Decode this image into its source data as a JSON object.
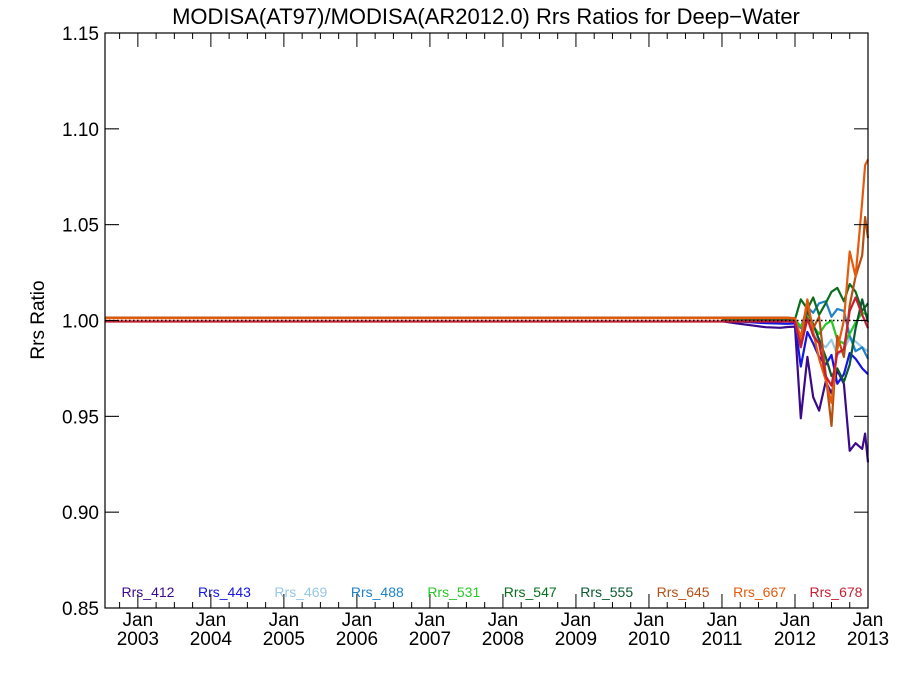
{
  "chart_data": {
    "type": "line",
    "title": "MODISA(AT97)/MODISA(AR2012.0)  Rrs Ratios for Deep−Water",
    "ylabel": "Rrs Ratio",
    "xlabel": "",
    "xlim": [
      2002.55,
      2013.0
    ],
    "ylim": [
      0.85,
      1.15
    ],
    "y_ticks": [
      "0.85",
      "0.90",
      "0.95",
      "1.00",
      "1.05",
      "1.10",
      "1.15"
    ],
    "x_ticks": [
      {
        "month": "Jan",
        "year": "2003",
        "x": 2003.0
      },
      {
        "month": "Jan",
        "year": "2004",
        "x": 2004.0
      },
      {
        "month": "Jan",
        "year": "2005",
        "x": 2005.0
      },
      {
        "month": "Jan",
        "year": "2006",
        "x": 2006.0
      },
      {
        "month": "Jan",
        "year": "2007",
        "x": 2007.0
      },
      {
        "month": "Jan",
        "year": "2008",
        "x": 2008.0
      },
      {
        "month": "Jan",
        "year": "2009",
        "x": 2009.0
      },
      {
        "month": "Jan",
        "year": "2010",
        "x": 2010.0
      },
      {
        "month": "Jan",
        "year": "2011",
        "x": 2011.0
      },
      {
        "month": "Jan",
        "year": "2012",
        "x": 2012.0
      },
      {
        "month": "Jan",
        "year": "2013",
        "x": 2013.0
      }
    ],
    "reference_line": 1.0,
    "grid": false,
    "legend_position": "bottom",
    "series": [
      {
        "name": "Rrs_412",
        "color": "#3b0a8c",
        "x": [
          2011.0,
          2011.2,
          2011.4,
          2011.6,
          2011.8,
          2011.9,
          2012.0,
          2012.08,
          2012.17,
          2012.25,
          2012.33,
          2012.42,
          2012.5,
          2012.58,
          2012.67,
          2012.75,
          2012.83,
          2012.92,
          2012.96,
          2013.0
        ],
        "y": [
          0.9996,
          0.9985,
          0.9975,
          0.9965,
          0.9962,
          0.9966,
          0.9968,
          0.949,
          0.981,
          0.96,
          0.953,
          0.968,
          0.962,
          0.974,
          0.967,
          0.932,
          0.936,
          0.933,
          0.941,
          0.926
        ]
      },
      {
        "name": "Rrs_443",
        "color": "#1414e6",
        "x": [
          2011.0,
          2011.3,
          2011.6,
          2011.9,
          2012.0,
          2012.08,
          2012.17,
          2012.25,
          2012.33,
          2012.42,
          2012.5,
          2012.58,
          2012.67,
          2012.75,
          2012.83,
          2012.92,
          2013.0
        ],
        "y": [
          0.9998,
          0.9993,
          0.9986,
          0.9983,
          0.9985,
          0.976,
          0.994,
          0.988,
          0.981,
          0.977,
          0.982,
          0.967,
          0.972,
          0.983,
          0.98,
          0.975,
          0.972
        ]
      },
      {
        "name": "Rrs_469",
        "color": "#96c8e8",
        "x": [
          2011.0,
          2011.3,
          2011.6,
          2011.9,
          2012.0,
          2012.08,
          2012.17,
          2012.25,
          2012.33,
          2012.42,
          2012.5,
          2012.58,
          2012.67,
          2012.75,
          2012.83,
          2012.92,
          2013.0
        ],
        "y": [
          1.0,
          0.9998,
          0.9996,
          0.9995,
          0.9996,
          0.986,
          1.001,
          0.993,
          0.989,
          0.986,
          0.99,
          0.982,
          0.985,
          0.991,
          0.989,
          0.986,
          0.984
        ]
      },
      {
        "name": "Rrs_488",
        "color": "#1e82c8",
        "x": [
          2011.0,
          2011.3,
          2011.6,
          2011.9,
          2012.0,
          2012.08,
          2012.17,
          2012.25,
          2012.33,
          2012.42,
          2012.5,
          2012.58,
          2012.67,
          2012.75,
          2012.83,
          2012.92,
          2013.0
        ],
        "y": [
          1.0,
          1.0,
          1.0002,
          1.0003,
          1.0004,
          0.996,
          1.007,
          1.004,
          1.009,
          1.01,
          1.002,
          1.006,
          1.005,
          0.992,
          0.984,
          0.986,
          0.98
        ]
      },
      {
        "name": "Rrs_531",
        "color": "#28c828",
        "x": [
          2011.0,
          2011.3,
          2011.6,
          2011.9,
          2012.0,
          2012.08,
          2012.17,
          2012.25,
          2012.33,
          2012.42,
          2012.5,
          2012.58,
          2012.67,
          2012.75,
          2012.83,
          2012.92,
          2013.0
        ],
        "y": [
          1.0,
          1.0001,
          1.0002,
          1.0003,
          1.0003,
          0.997,
          1.002,
          0.997,
          0.993,
          0.998,
          1.0,
          0.99,
          0.988,
          0.993,
          0.999,
          1.004,
          1.003
        ]
      },
      {
        "name": "Rrs_547",
        "color": "#0a6e1e",
        "x": [
          2011.0,
          2011.3,
          2011.6,
          2011.9,
          2012.0,
          2012.08,
          2012.17,
          2012.25,
          2012.33,
          2012.42,
          2012.5,
          2012.58,
          2012.67,
          2012.75,
          2012.83,
          2012.92,
          2013.0
        ],
        "y": [
          1.0,
          1.0001,
          1.0003,
          1.0004,
          1.0006,
          1.011,
          1.006,
          1.012,
          1.003,
          1.009,
          1.015,
          1.017,
          1.01,
          1.019,
          1.015,
          1.005,
          1.009
        ]
      },
      {
        "name": "Rrs_555",
        "color": "#0a5a32",
        "x": [
          2011.0,
          2011.3,
          2011.6,
          2011.9,
          2012.0,
          2012.08,
          2012.17,
          2012.25,
          2012.33,
          2012.42,
          2012.5,
          2012.58,
          2012.67,
          2012.75,
          2012.83,
          2012.92,
          2013.0
        ],
        "y": [
          1.0,
          1.0001,
          1.0003,
          1.0004,
          1.0006,
          0.989,
          1.005,
          0.998,
          0.99,
          0.981,
          0.971,
          0.975,
          0.968,
          0.977,
          0.996,
          1.011,
          0.999
        ]
      },
      {
        "name": "Rrs_645",
        "color": "#b45014",
        "x": [
          2002.55,
          2011.9,
          2012.0,
          2012.08,
          2012.17,
          2012.25,
          2012.33,
          2012.42,
          2012.5,
          2012.58,
          2012.67,
          2012.75,
          2012.83,
          2012.92,
          2012.96,
          2013.0
        ],
        "y": [
          1.0015,
          1.0015,
          1.0012,
          0.99,
          1.008,
          0.996,
          1.002,
          0.972,
          0.945,
          0.992,
          0.981,
          1.008,
          1.023,
          1.034,
          1.054,
          1.043
        ]
      },
      {
        "name": "Rrs_667",
        "color": "#e65a0a",
        "x": [
          2002.55,
          2011.9,
          2012.0,
          2012.08,
          2012.17,
          2012.25,
          2012.33,
          2012.42,
          2012.5,
          2012.58,
          2012.67,
          2012.75,
          2012.83,
          2012.92,
          2012.96,
          2013.0
        ],
        "y": [
          1.0012,
          1.0012,
          1.001,
          0.991,
          1.011,
          0.994,
          0.98,
          0.969,
          0.957,
          0.985,
          1.0,
          1.036,
          1.023,
          1.062,
          1.081,
          1.084
        ]
      },
      {
        "name": "Rrs_678",
        "color": "#c81e32",
        "x": [
          2002.55,
          2011.9,
          2012.0,
          2012.08,
          2012.17,
          2012.25,
          2012.33,
          2012.42,
          2012.5,
          2012.58,
          2012.67,
          2012.75,
          2012.83,
          2012.92,
          2013.0
        ],
        "y": [
          0.9995,
          0.9995,
          0.9993,
          0.986,
          1.001,
          0.992,
          0.988,
          0.971,
          0.966,
          0.983,
          0.985,
          1.005,
          1.012,
          1.003,
          0.996
        ]
      }
    ]
  }
}
